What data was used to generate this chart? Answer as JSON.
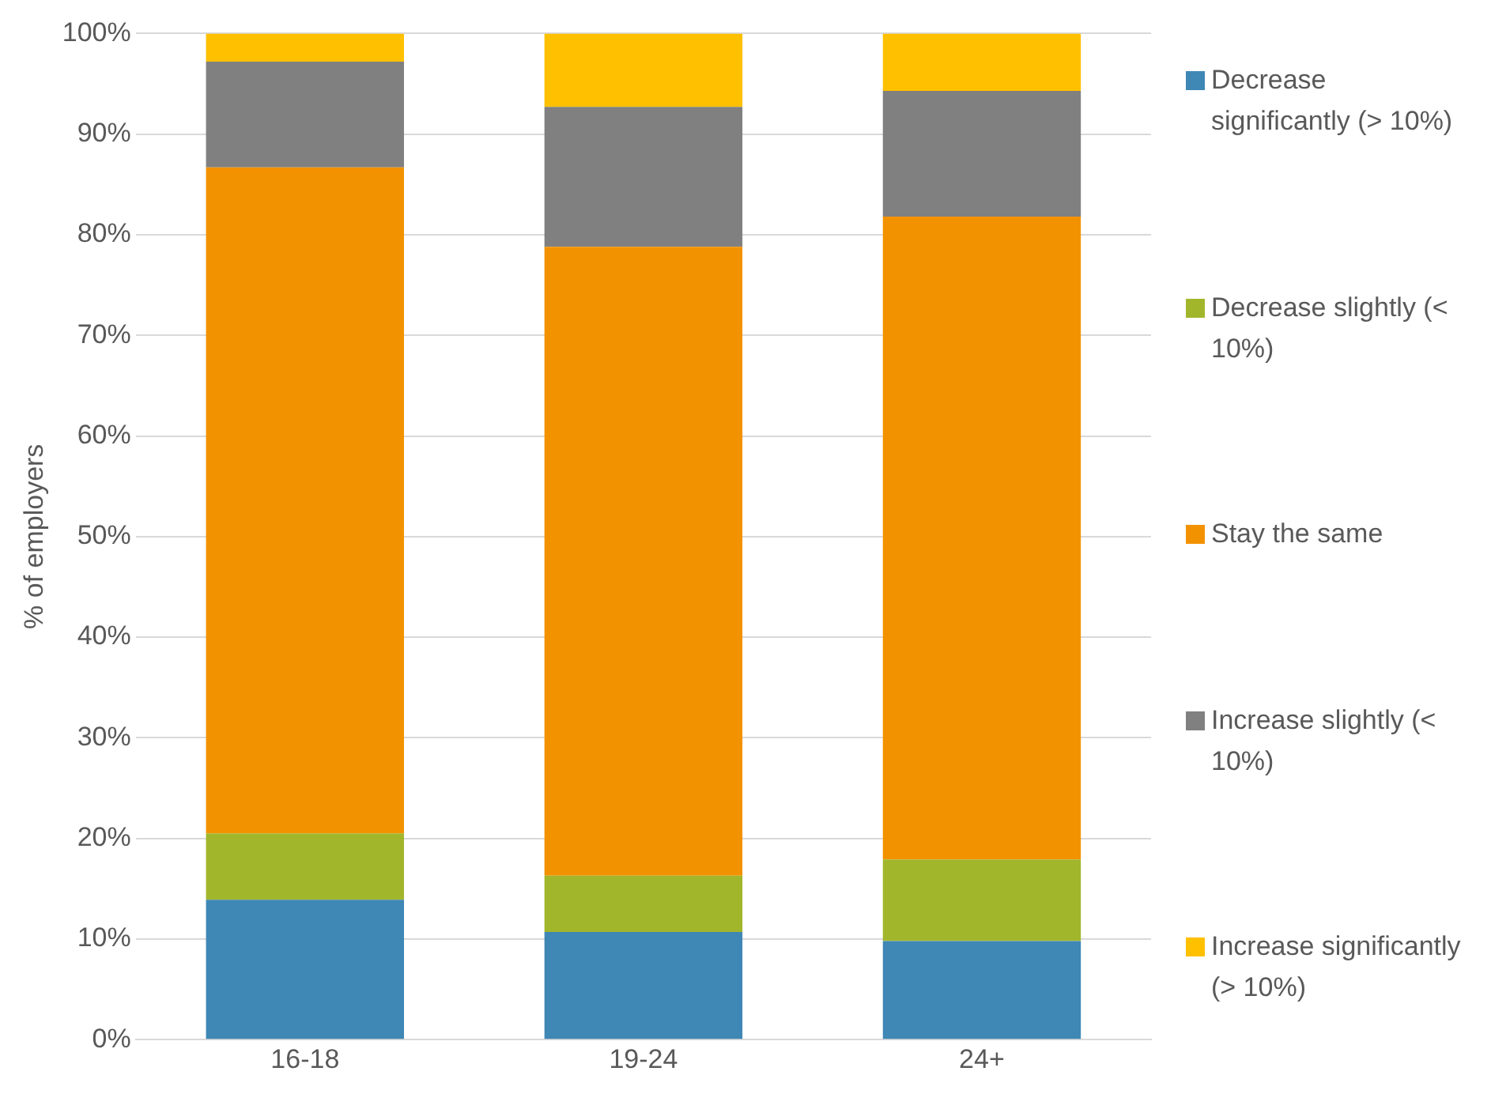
{
  "chart_data": {
    "type": "bar",
    "stacked": true,
    "ylabel": "% of employers",
    "categories": [
      "16-18",
      "19-24",
      "24+"
    ],
    "series": [
      {
        "name": "Decrease significantly (> 10%)",
        "color": "#3f87b5",
        "values": [
          13.9,
          10.7,
          9.8
        ]
      },
      {
        "name": "Decrease slightly (< 10%)",
        "color": "#a2b62b",
        "values": [
          6.6,
          5.6,
          8.1
        ]
      },
      {
        "name": "Stay the same",
        "color": "#f39200",
        "values": [
          66.2,
          62.5,
          63.9
        ]
      },
      {
        "name": "Increase slightly (< 10%)",
        "color": "#808080",
        "values": [
          10.5,
          13.9,
          12.5
        ]
      },
      {
        "name": "Increase significantly (> 10%)",
        "color": "#ffc000",
        "values": [
          2.8,
          7.3,
          5.7
        ]
      }
    ],
    "ylim": [
      0,
      100
    ],
    "yticks": [
      {
        "value": 0,
        "label": "0%"
      },
      {
        "value": 10,
        "label": "10%"
      },
      {
        "value": 20,
        "label": "20%"
      },
      {
        "value": 30,
        "label": "30%"
      },
      {
        "value": 40,
        "label": "40%"
      },
      {
        "value": 50,
        "label": "50%"
      },
      {
        "value": 60,
        "label": "60%"
      },
      {
        "value": 70,
        "label": "70%"
      },
      {
        "value": 80,
        "label": "80%"
      },
      {
        "value": 90,
        "label": "90%"
      },
      {
        "value": 100,
        "label": "100%"
      }
    ],
    "grid": "y",
    "legend": "right"
  }
}
